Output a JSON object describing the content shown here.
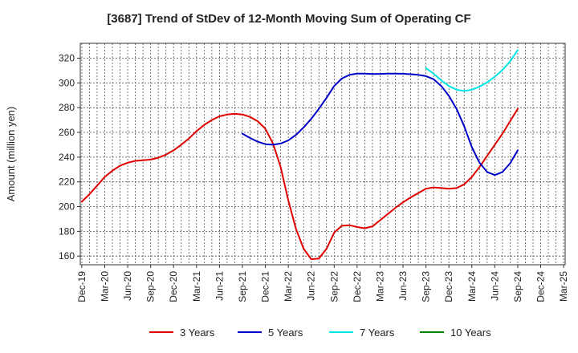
{
  "chart_data": {
    "type": "line",
    "title": "[3687]  Trend of StDev of 12-Month Moving Sum of Operating CF",
    "xlabel": "",
    "ylabel": "Amount (million yen)",
    "ylim": [
      153,
      332
    ],
    "yticks": [
      160,
      180,
      200,
      220,
      240,
      260,
      280,
      300,
      320
    ],
    "x_range": [
      "2019-12",
      "2025-03"
    ],
    "xticks": [
      "Dec-19",
      "Mar-20",
      "Jun-20",
      "Sep-20",
      "Dec-20",
      "Mar-21",
      "Jun-21",
      "Sep-21",
      "Dec-21",
      "Mar-22",
      "Jun-22",
      "Sep-22",
      "Dec-22",
      "Mar-23",
      "Jun-23",
      "Sep-23",
      "Dec-23",
      "Mar-24",
      "Jun-24",
      "Sep-24",
      "Dec-24",
      "Mar-25"
    ],
    "grid": true,
    "legend_position": "bottom",
    "series": [
      {
        "name": "3 Years",
        "color": "#e00000",
        "points": [
          [
            "2019-12",
            204
          ],
          [
            "2020-01",
            210
          ],
          [
            "2020-02",
            217
          ],
          [
            "2020-03",
            224
          ],
          [
            "2020-04",
            229
          ],
          [
            "2020-05",
            233
          ],
          [
            "2020-06",
            235.5
          ],
          [
            "2020-07",
            237
          ],
          [
            "2020-08",
            237.5
          ],
          [
            "2020-09",
            238
          ],
          [
            "2020-10",
            239.5
          ],
          [
            "2020-11",
            242
          ],
          [
            "2020-12",
            245.5
          ],
          [
            "2021-01",
            250
          ],
          [
            "2021-02",
            255
          ],
          [
            "2021-03",
            261
          ],
          [
            "2021-04",
            266
          ],
          [
            "2021-05",
            270
          ],
          [
            "2021-06",
            273
          ],
          [
            "2021-07",
            274.5
          ],
          [
            "2021-08",
            275
          ],
          [
            "2021-09",
            274.5
          ],
          [
            "2021-10",
            272.5
          ],
          [
            "2021-11",
            269
          ],
          [
            "2021-12",
            263
          ],
          [
            "2022-01",
            251
          ],
          [
            "2022-02",
            232
          ],
          [
            "2022-03",
            205
          ],
          [
            "2022-04",
            182
          ],
          [
            "2022-05",
            166
          ],
          [
            "2022-06",
            157.5
          ],
          [
            "2022-07",
            158
          ],
          [
            "2022-08",
            166
          ],
          [
            "2022-09",
            179
          ],
          [
            "2022-10",
            184.5
          ],
          [
            "2022-11",
            185
          ],
          [
            "2022-12",
            183.5
          ],
          [
            "2023-01",
            182.5
          ],
          [
            "2023-02",
            184
          ],
          [
            "2023-03",
            189
          ],
          [
            "2023-04",
            194
          ],
          [
            "2023-05",
            199
          ],
          [
            "2023-06",
            203.5
          ],
          [
            "2023-07",
            207.5
          ],
          [
            "2023-08",
            211
          ],
          [
            "2023-09",
            214.5
          ],
          [
            "2023-10",
            215.5
          ],
          [
            "2023-11",
            215
          ],
          [
            "2023-12",
            214.5
          ],
          [
            "2024-01",
            215
          ],
          [
            "2024-02",
            218
          ],
          [
            "2024-03",
            224
          ],
          [
            "2024-04",
            232
          ],
          [
            "2024-05",
            241
          ],
          [
            "2024-06",
            250
          ],
          [
            "2024-07",
            259
          ],
          [
            "2024-08",
            269
          ],
          [
            "2024-09",
            279
          ]
        ]
      },
      {
        "name": "5 Years",
        "color": "#0000cc",
        "points": [
          [
            "2021-09",
            259
          ],
          [
            "2021-10",
            255.5
          ],
          [
            "2021-11",
            252.5
          ],
          [
            "2021-12",
            250.5
          ],
          [
            "2022-01",
            250
          ],
          [
            "2022-02",
            251
          ],
          [
            "2022-03",
            253.5
          ],
          [
            "2022-04",
            258
          ],
          [
            "2022-05",
            264
          ],
          [
            "2022-06",
            271
          ],
          [
            "2022-07",
            279
          ],
          [
            "2022-08",
            288
          ],
          [
            "2022-09",
            297.5
          ],
          [
            "2022-10",
            303.5
          ],
          [
            "2022-11",
            306.5
          ],
          [
            "2022-12",
            307.5
          ],
          [
            "2023-01",
            307.5
          ],
          [
            "2023-02",
            307.2
          ],
          [
            "2023-03",
            307.3
          ],
          [
            "2023-04",
            307.5
          ],
          [
            "2023-05",
            307.5
          ],
          [
            "2023-06",
            307.4
          ],
          [
            "2023-07",
            307
          ],
          [
            "2023-08",
            306.5
          ],
          [
            "2023-09",
            305.5
          ],
          [
            "2023-10",
            303
          ],
          [
            "2023-11",
            297.5
          ],
          [
            "2023-12",
            289.5
          ],
          [
            "2024-01",
            279
          ],
          [
            "2024-02",
            265
          ],
          [
            "2024-03",
            248
          ],
          [
            "2024-04",
            235.5
          ],
          [
            "2024-05",
            228
          ],
          [
            "2024-06",
            225.5
          ],
          [
            "2024-07",
            228
          ],
          [
            "2024-08",
            235
          ],
          [
            "2024-09",
            245.5
          ]
        ]
      },
      {
        "name": "7 Years",
        "color": "#00e5e5",
        "points": [
          [
            "2023-09",
            312
          ],
          [
            "2023-10",
            307.5
          ],
          [
            "2023-11",
            302
          ],
          [
            "2023-12",
            297.5
          ],
          [
            "2024-01",
            294.5
          ],
          [
            "2024-02",
            293.5
          ],
          [
            "2024-03",
            294.5
          ],
          [
            "2024-04",
            297
          ],
          [
            "2024-05",
            300.5
          ],
          [
            "2024-06",
            305
          ],
          [
            "2024-07",
            310.5
          ],
          [
            "2024-08",
            317.5
          ],
          [
            "2024-09",
            326.5
          ]
        ]
      },
      {
        "name": "10 Years",
        "color": "#008000",
        "points": []
      }
    ]
  }
}
